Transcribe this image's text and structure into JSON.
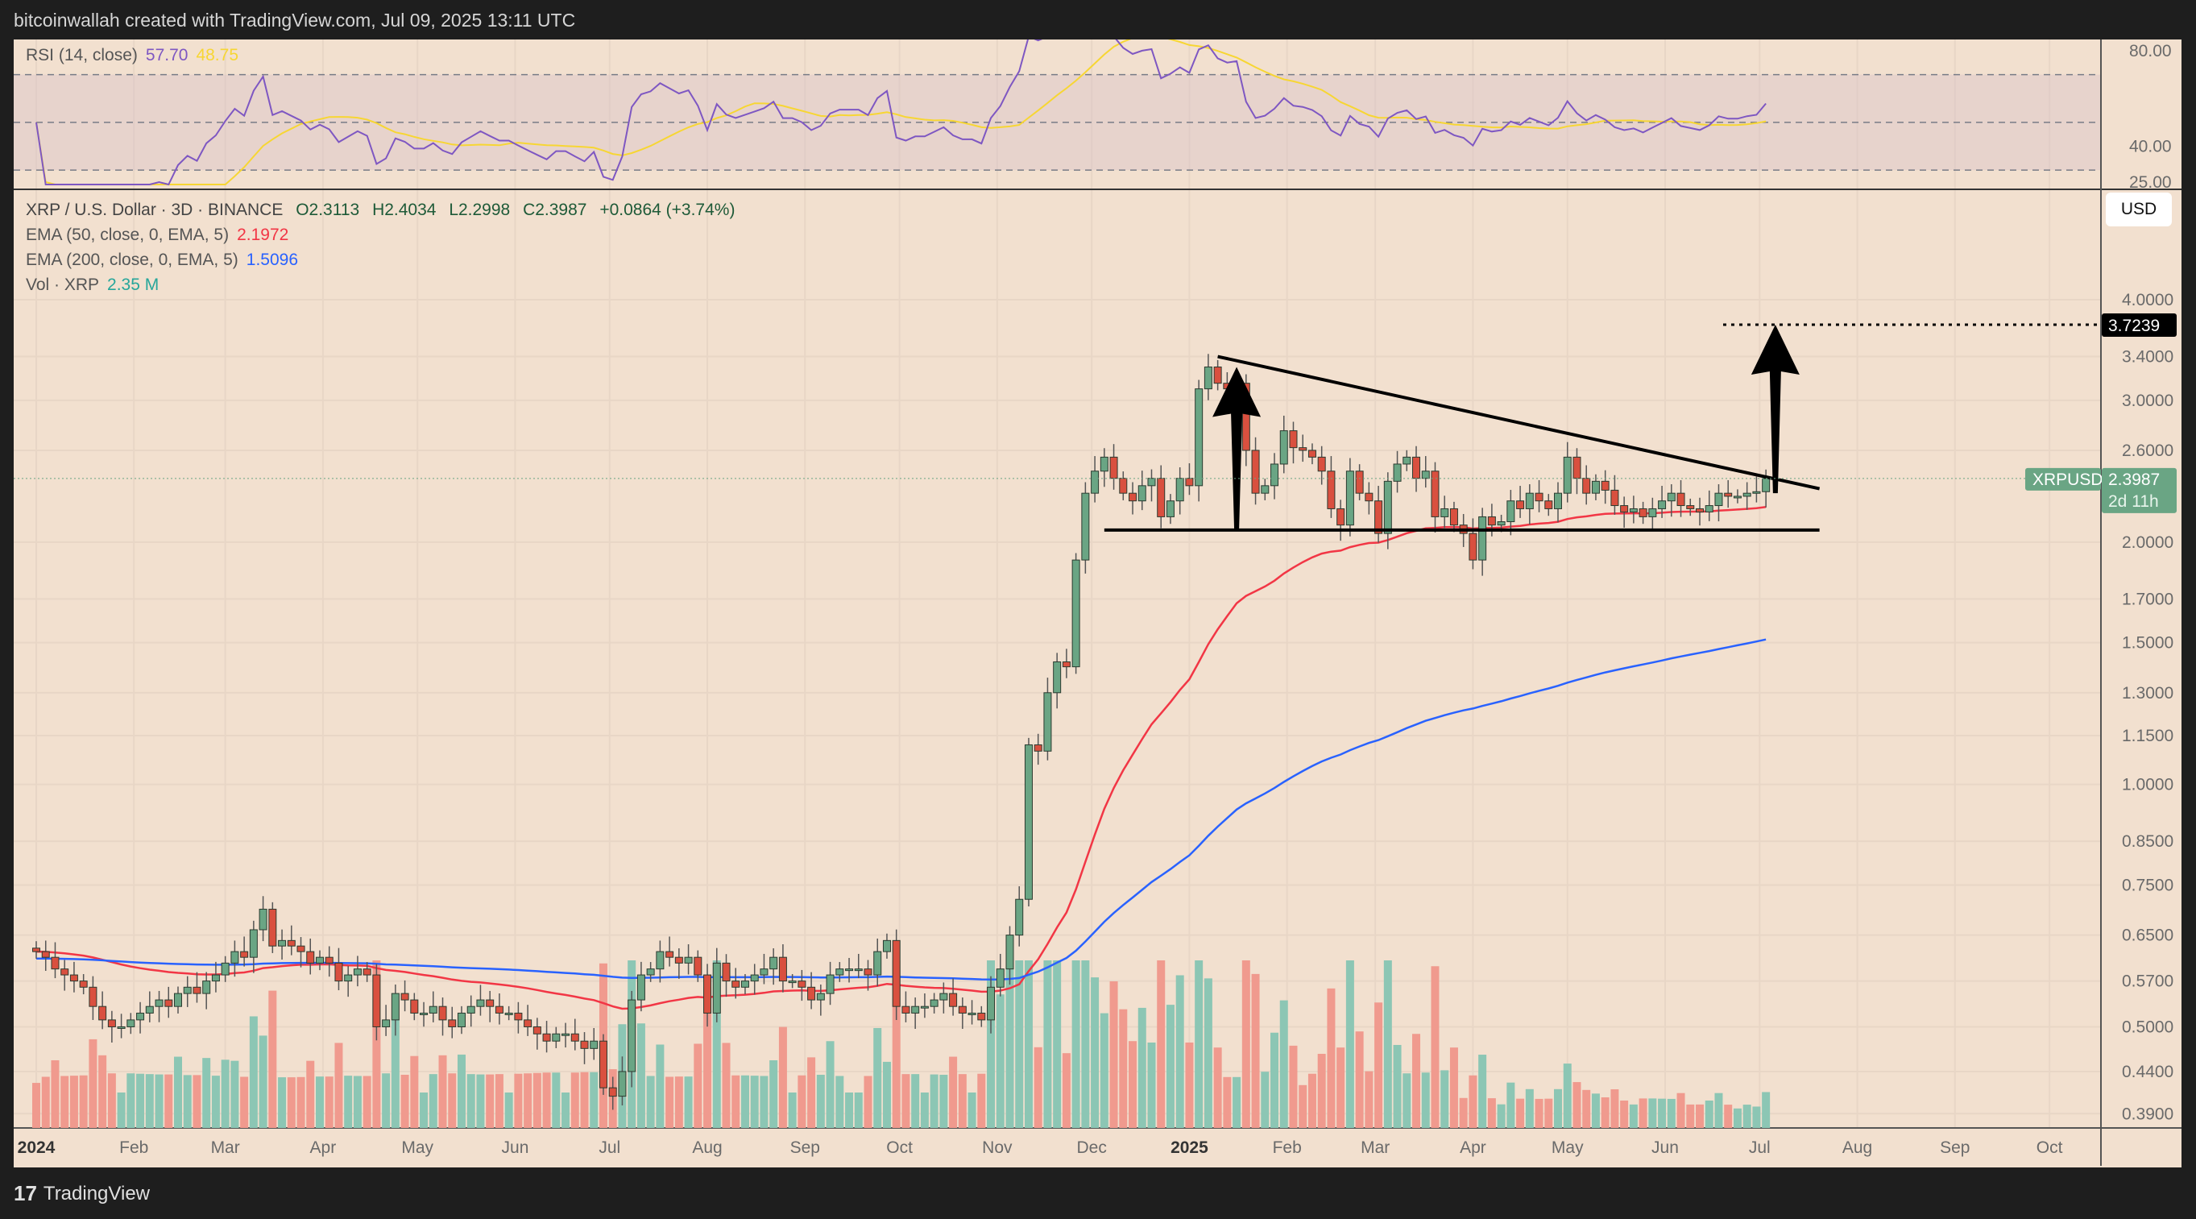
{
  "header": {
    "attribution": "bitcoinwallah created with TradingView.com, Jul 09, 2025 13:11 UTC"
  },
  "footer": {
    "brand": "TradingView"
  },
  "colors": {
    "background": "#f2e0cf",
    "up": "#6aa584",
    "down": "#d9503f",
    "ema50": "#f23645",
    "ema200": "#2962ff",
    "rsi": "#7e57c2",
    "rsi_ma": "#f7d633",
    "volume_up": "#8cc6b4",
    "volume_down": "#f09a8e"
  },
  "rsi_legend": {
    "label": "RSI (14, close)",
    "value": "57.70",
    "ma_value": "48.75"
  },
  "legend": {
    "symbol": "XRP / U.S. Dollar · 3D · BINANCE",
    "open": "O2.3113",
    "high": "H2.4034",
    "low": "L2.2998",
    "close": "C2.3987",
    "change": "+0.0864 (+3.74%)",
    "ema50_label": "EMA (50, close, 0, EMA, 5)",
    "ema50_value": "2.1972",
    "ema200_label": "EMA (200, close, 0, EMA, 5)",
    "ema200_value": "1.5096",
    "vol_label": "Vol · XRP",
    "vol_value": "2.35 M"
  },
  "currency_button": "USD",
  "price_tag": {
    "symbol": "XRPUSD",
    "price": "2.3987",
    "countdown": "2d 11h"
  },
  "target_tag": "3.7239",
  "chart_data": {
    "type": "candlestick",
    "interval": "3D",
    "start_date": "2024-01-01",
    "y_scale": "log",
    "ylim": [
      0.37,
      4.3
    ],
    "price_ticks": [
      "4.0000",
      "3.4000",
      "3.0000",
      "2.6000",
      "2.0000",
      "1.7000",
      "1.5000",
      "1.3000",
      "1.1500",
      "1.0000",
      "0.8500",
      "0.7500",
      "0.6500",
      "0.5700",
      "0.5000",
      "0.4400",
      "0.3900"
    ],
    "rsi_ticks": [
      "80.00",
      "40.00",
      "25.00"
    ],
    "time_ticks": [
      {
        "label": "2024",
        "date": "2024-01-01",
        "bold": true
      },
      {
        "label": "Feb",
        "date": "2024-02-01"
      },
      {
        "label": "Mar",
        "date": "2024-03-01"
      },
      {
        "label": "Apr",
        "date": "2024-04-01"
      },
      {
        "label": "May",
        "date": "2024-05-01"
      },
      {
        "label": "Jun",
        "date": "2024-06-01"
      },
      {
        "label": "Jul",
        "date": "2024-07-01"
      },
      {
        "label": "Aug",
        "date": "2024-08-01"
      },
      {
        "label": "Sep",
        "date": "2024-09-01"
      },
      {
        "label": "Oct",
        "date": "2024-10-01"
      },
      {
        "label": "Nov",
        "date": "2024-11-01"
      },
      {
        "label": "Dec",
        "date": "2024-12-01"
      },
      {
        "label": "2025",
        "date": "2025-01-01",
        "bold": true
      },
      {
        "label": "Feb",
        "date": "2025-02-01"
      },
      {
        "label": "Mar",
        "date": "2025-03-01"
      },
      {
        "label": "Apr",
        "date": "2025-04-01"
      },
      {
        "label": "May",
        "date": "2025-05-01"
      },
      {
        "label": "Jun",
        "date": "2025-06-01"
      },
      {
        "label": "Jul",
        "date": "2025-07-01"
      },
      {
        "label": "Aug",
        "date": "2025-08-01"
      },
      {
        "label": "Sep",
        "date": "2025-09-01"
      },
      {
        "label": "Oct",
        "date": "2025-10-01"
      }
    ],
    "closes": [
      0.62,
      0.61,
      0.59,
      0.58,
      0.57,
      0.56,
      0.53,
      0.51,
      0.5,
      0.5,
      0.51,
      0.52,
      0.53,
      0.54,
      0.53,
      0.55,
      0.56,
      0.55,
      0.57,
      0.58,
      0.6,
      0.62,
      0.61,
      0.66,
      0.7,
      0.63,
      0.64,
      0.63,
      0.62,
      0.6,
      0.61,
      0.6,
      0.57,
      0.58,
      0.59,
      0.58,
      0.5,
      0.51,
      0.55,
      0.54,
      0.52,
      0.52,
      0.53,
      0.51,
      0.5,
      0.52,
      0.53,
      0.54,
      0.53,
      0.52,
      0.52,
      0.51,
      0.5,
      0.49,
      0.48,
      0.49,
      0.49,
      0.48,
      0.47,
      0.48,
      0.42,
      0.41,
      0.44,
      0.54,
      0.58,
      0.59,
      0.62,
      0.61,
      0.6,
      0.61,
      0.58,
      0.52,
      0.6,
      0.57,
      0.56,
      0.57,
      0.58,
      0.59,
      0.61,
      0.57,
      0.57,
      0.56,
      0.54,
      0.55,
      0.58,
      0.59,
      0.59,
      0.59,
      0.58,
      0.62,
      0.64,
      0.53,
      0.52,
      0.53,
      0.53,
      0.54,
      0.55,
      0.53,
      0.52,
      0.52,
      0.51,
      0.56,
      0.59,
      0.65,
      0.72,
      1.12,
      1.1,
      1.3,
      1.42,
      1.4,
      1.9,
      2.3,
      2.45,
      2.55,
      2.4,
      2.3,
      2.25,
      2.35,
      2.4,
      2.15,
      2.25,
      2.4,
      2.35,
      3.1,
      3.3,
      3.15,
      3.1,
      3.15,
      2.6,
      2.3,
      2.35,
      2.5,
      2.75,
      2.62,
      2.6,
      2.55,
      2.45,
      2.2,
      2.1,
      2.45,
      2.3,
      2.25,
      2.05,
      2.38,
      2.5,
      2.55,
      2.4,
      2.45,
      2.15,
      2.2,
      2.1,
      2.05,
      1.9,
      2.15,
      2.1,
      2.12,
      2.25,
      2.2,
      2.3,
      2.25,
      2.2,
      2.3,
      2.55,
      2.4,
      2.3,
      2.38,
      2.32,
      2.22,
      2.18,
      2.2,
      2.15,
      2.2,
      2.25,
      2.3,
      2.22,
      2.2,
      2.18,
      2.22,
      2.3,
      2.28,
      2.28,
      2.3,
      2.31,
      2.3987
    ],
    "annotations": {
      "descending_trendline": [
        {
          "date": "2025-01-10",
          "price": 3.4
        },
        {
          "date": "2025-07-20",
          "price": 2.33
        }
      ],
      "support_line": {
        "price": 2.07,
        "from": "2024-12-05",
        "to": "2025-07-20"
      },
      "arrows": [
        {
          "date": "2025-01-16",
          "from": 2.07,
          "to": 3.3
        },
        {
          "date": "2025-07-06",
          "from": 2.3,
          "to": 3.7239
        }
      ],
      "target_level": 3.7239
    }
  }
}
